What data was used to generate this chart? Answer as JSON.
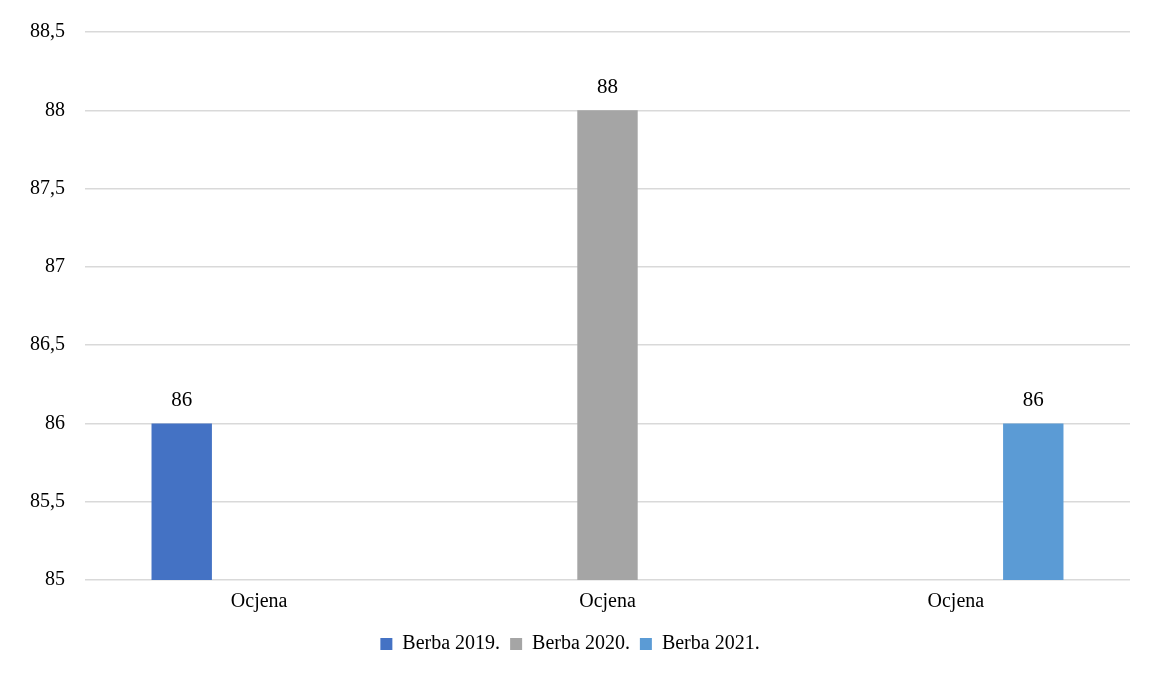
{
  "chart_data": {
    "type": "bar",
    "categories": [
      "Ocjena",
      "Ocjena",
      "Ocjena"
    ],
    "series": [
      {
        "name": "Berba 2019.",
        "color": "#4472c4",
        "values": [
          86,
          null,
          null
        ]
      },
      {
        "name": "Berba 2020.",
        "color": "#a5a5a5",
        "values": [
          null,
          88,
          null
        ]
      },
      {
        "name": "Berba 2021.",
        "color": "#5b9bd5",
        "values": [
          null,
          null,
          86
        ]
      }
    ],
    "ylim": [
      85,
      88.5
    ],
    "yticks": [
      85,
      {
        "value": 85.5,
        "label": "85,5"
      },
      86,
      {
        "value": 86.5,
        "label": "86,5"
      },
      87,
      {
        "value": 87.5,
        "label": "87,5"
      },
      88,
      {
        "value": 88.5,
        "label": "88,5"
      }
    ],
    "grid": "y",
    "legend": "bottom",
    "data_labels": true
  }
}
